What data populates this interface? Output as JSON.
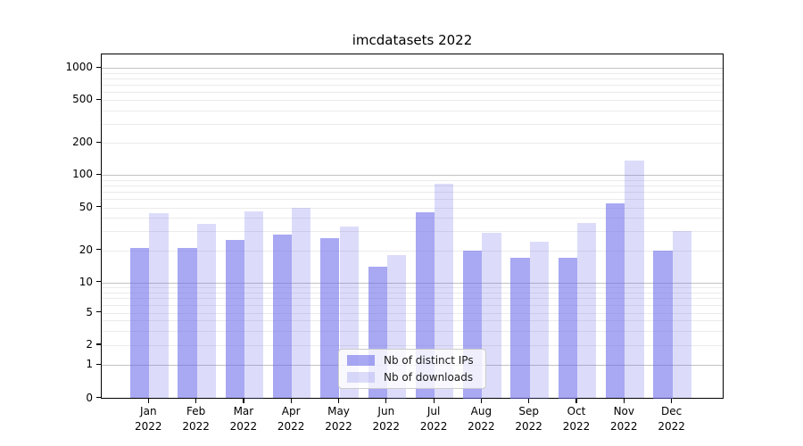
{
  "title": "imcdatasets 2022",
  "colors": {
    "ips_bar_hex": "#a8a8f3",
    "downloads_bar_hex": "#dcdcfa",
    "bar_base_rgba_ips": "rgba(105,105,235,0.58)",
    "bar_base_rgba_downloads": "rgba(105,105,235,0.23)",
    "grid_minor": "#ebebeb",
    "grid_major": "#c2c2c2",
    "axis": "#000000",
    "legend_border": "#cccccc"
  },
  "chart_data": {
    "type": "bar",
    "title": "imcdatasets 2022",
    "categories": [
      "Jan 2022",
      "Feb 2022",
      "Mar 2022",
      "Apr 2022",
      "May 2022",
      "Jun 2022",
      "Jul 2022",
      "Aug 2022",
      "Sep 2022",
      "Oct 2022",
      "Nov 2022",
      "Dec 2022"
    ],
    "series": [
      {
        "name": "Nb of distinct IPs",
        "color": "rgba(105,105,235,0.58)",
        "values": [
          21,
          21,
          25,
          28,
          26,
          14,
          45,
          20,
          17,
          17,
          55,
          20
        ]
      },
      {
        "name": "Nb of downloads",
        "color": "rgba(105,105,235,0.23)",
        "values": [
          44,
          35,
          46,
          50,
          33,
          18,
          83,
          29,
          24,
          36,
          136,
          30
        ]
      }
    ],
    "xlabel": "",
    "ylabel": "",
    "yscale": "symlog",
    "ylim": [
      0,
      1300
    ],
    "yticks_labeled": [
      0,
      1,
      2,
      5,
      10,
      20,
      50,
      100,
      200,
      500,
      1000
    ],
    "grid": true,
    "grid_which": "both",
    "legend_position": "lower center"
  }
}
